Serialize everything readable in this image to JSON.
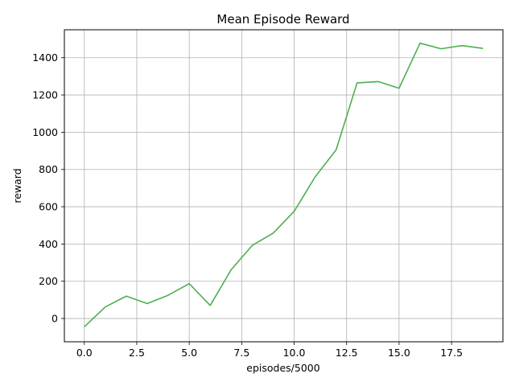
{
  "chart_data": {
    "type": "line",
    "title": "Mean Episode Reward",
    "xlabel": "episodes/5000",
    "ylabel": "reward",
    "xlim": [
      -0.95,
      19.95
    ],
    "ylim": [
      -125,
      1550
    ],
    "x_ticks": [
      0.0,
      2.5,
      5.0,
      7.5,
      10.0,
      12.5,
      15.0,
      17.5
    ],
    "x_tick_labels": [
      "0.0",
      "2.5",
      "5.0",
      "7.5",
      "10.0",
      "12.5",
      "15.0",
      "17.5"
    ],
    "y_ticks": [
      0,
      200,
      400,
      600,
      800,
      1000,
      1200,
      1400
    ],
    "y_tick_labels": [
      "0",
      "200",
      "400",
      "600",
      "800",
      "1000",
      "1200",
      "1400"
    ],
    "grid": true,
    "series": [
      {
        "color": "#4caf50",
        "x": [
          0,
          1,
          2,
          3,
          4,
          5,
          6,
          7,
          8,
          9,
          10,
          11,
          12,
          13,
          14,
          15,
          16,
          17,
          18,
          19
        ],
        "y": [
          -45,
          62,
          120,
          80,
          125,
          187,
          70,
          262,
          392,
          458,
          575,
          760,
          905,
          1265,
          1272,
          1236,
          1478,
          1448,
          1465,
          1450
        ]
      }
    ]
  }
}
